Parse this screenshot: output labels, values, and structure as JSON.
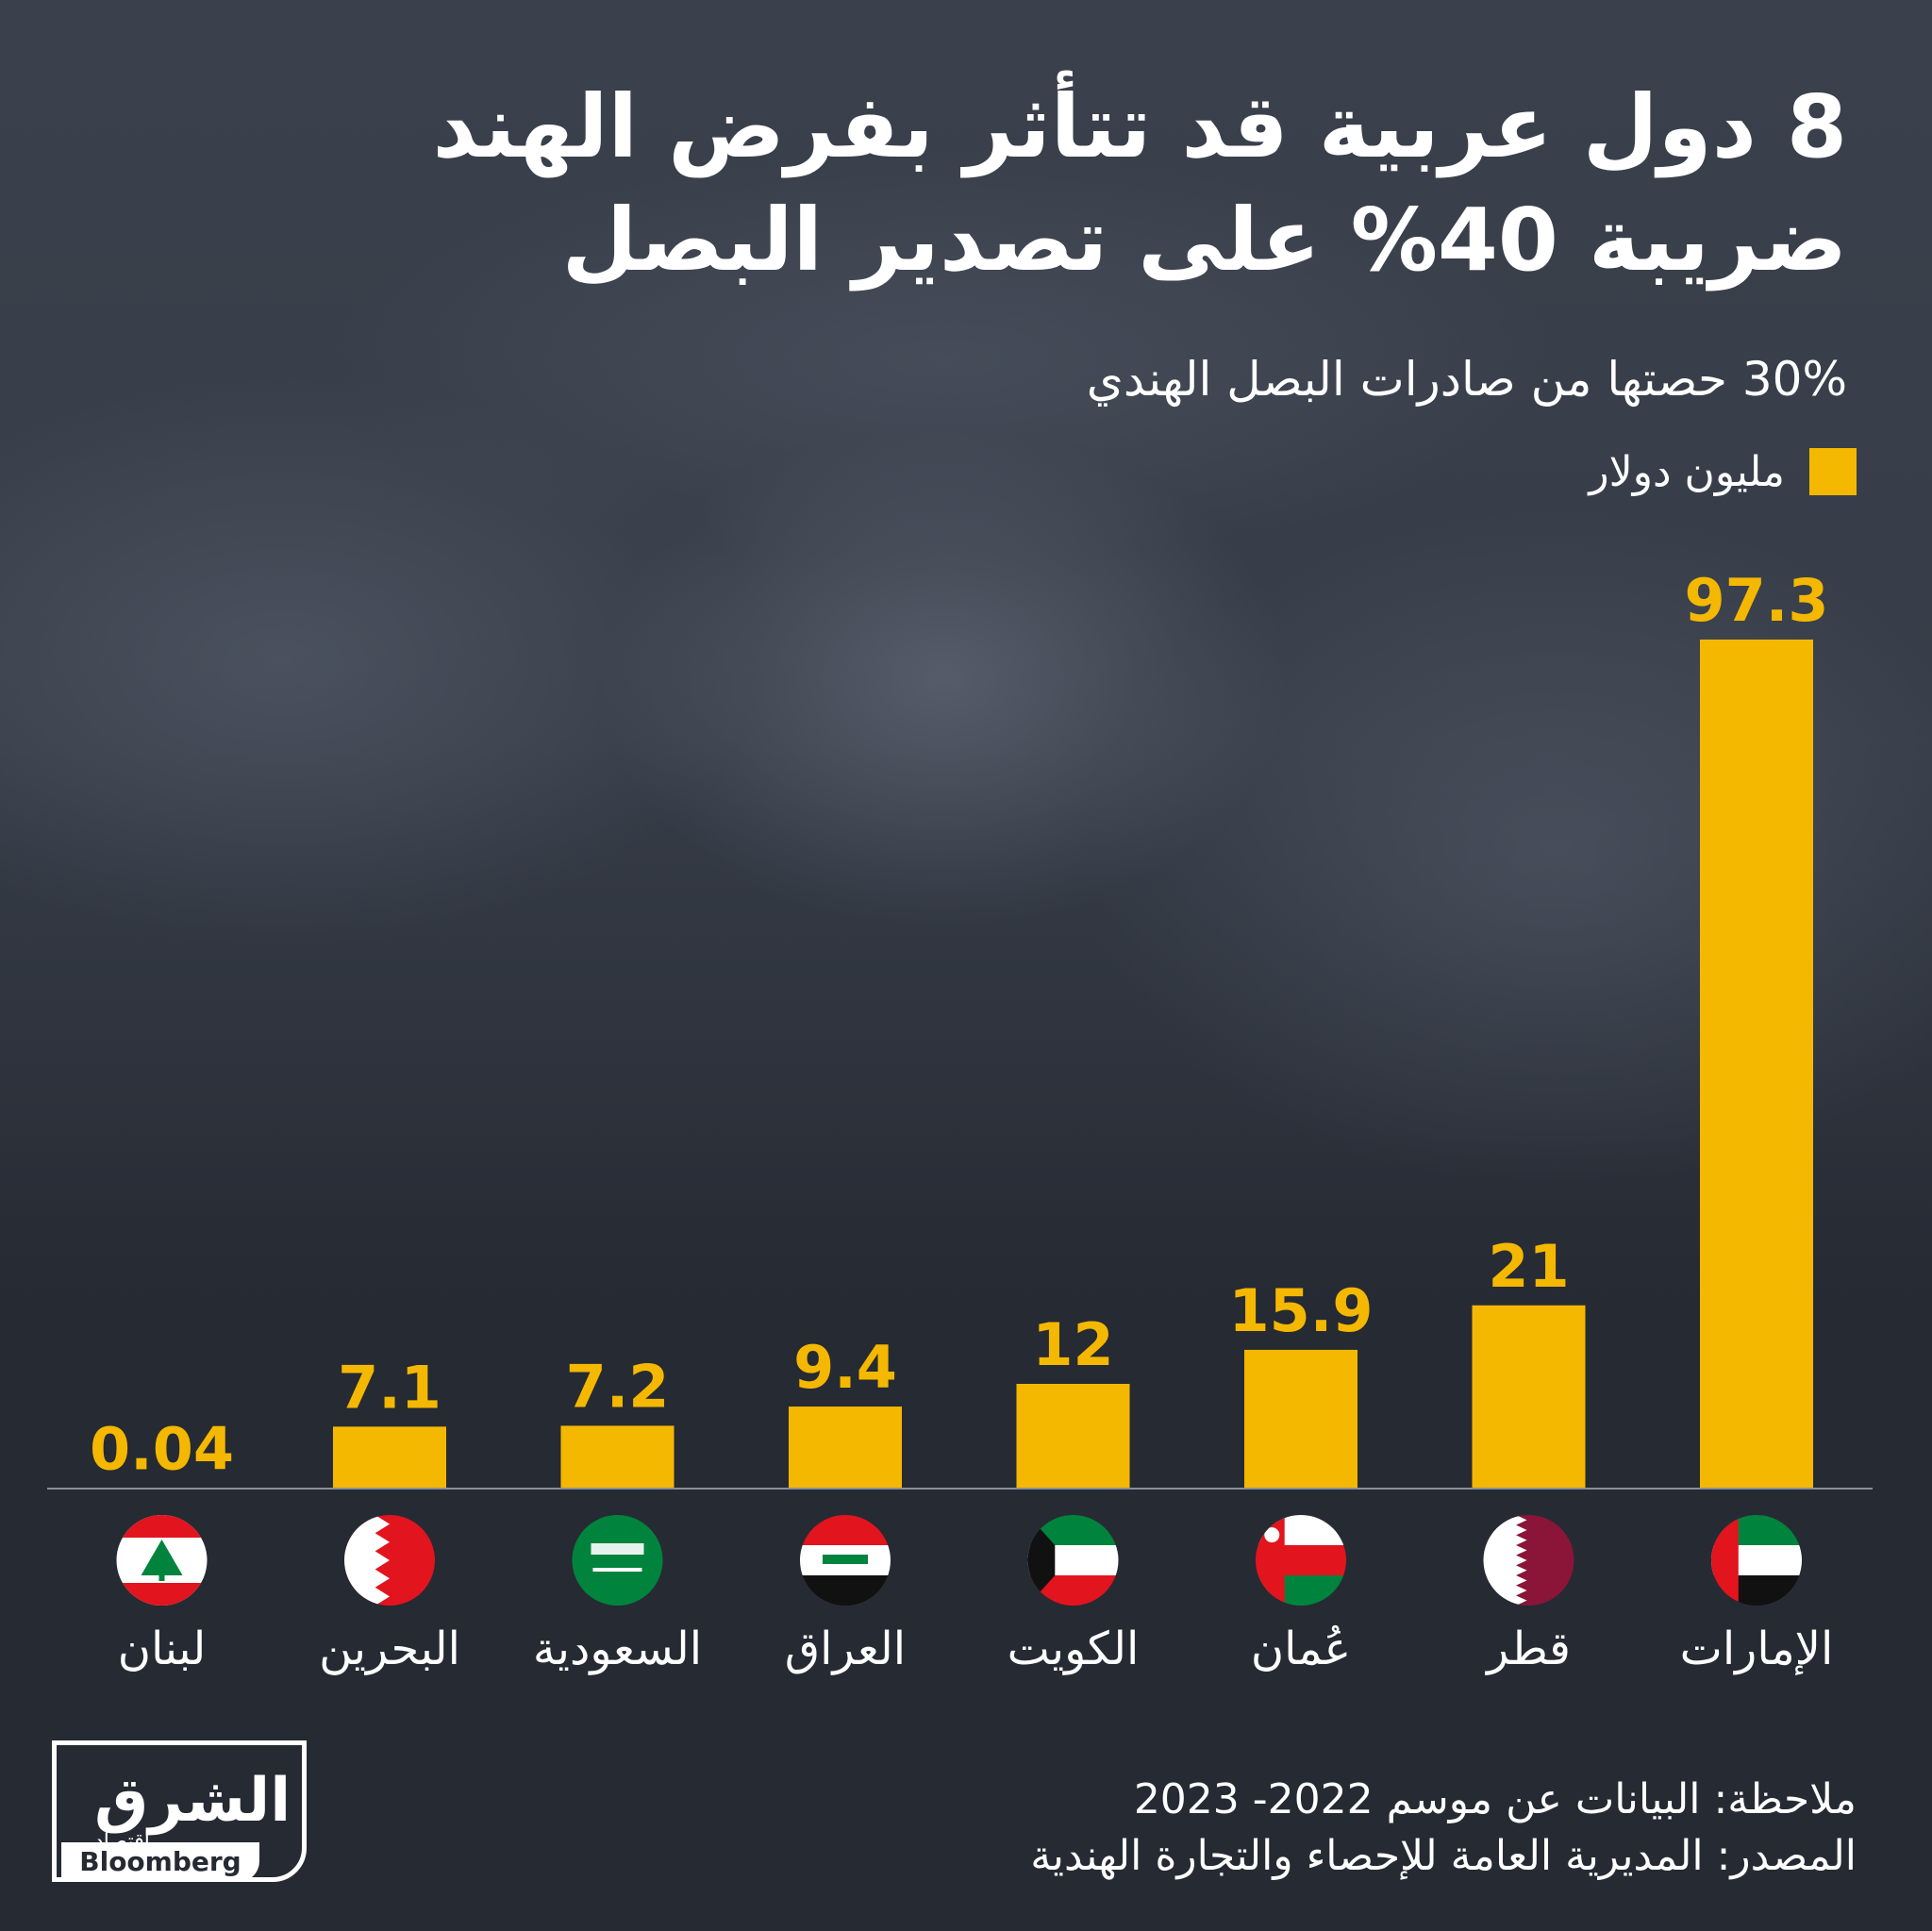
{
  "header": {
    "title_line1": "8 دول عربية قد تتأثر بفرض الهند",
    "title_line2": "ضريبة 40% على تصدير البصل",
    "subtitle": "30% حصتها من صادرات البصل الهندي"
  },
  "legend": {
    "label": "مليون دولار",
    "color": "#f5b800"
  },
  "chart_data": {
    "type": "bar",
    "categories": [
      "الإمارات",
      "قطر",
      "عُمان",
      "الكويت",
      "العراق",
      "السعودية",
      "البحرين",
      "لبنان"
    ],
    "values": [
      97.3,
      21,
      15.9,
      12,
      9.4,
      7.2,
      7.1,
      0.04
    ],
    "value_labels": [
      "97.3",
      "21",
      "15.9",
      "12",
      "9.4",
      "7.2",
      "7.1",
      "0.04"
    ],
    "unit": "مليون دولار",
    "bar_color": "#f5b800",
    "value_label_color": "#f5b800",
    "ylim": [
      0,
      100
    ],
    "grid": false
  },
  "flags": [
    {
      "country": "الإمارات",
      "icon": "uae-flag-icon"
    },
    {
      "country": "قطر",
      "icon": "qatar-flag-icon"
    },
    {
      "country": "عُمان",
      "icon": "oman-flag-icon"
    },
    {
      "country": "الكويت",
      "icon": "kuwait-flag-icon"
    },
    {
      "country": "العراق",
      "icon": "iraq-flag-icon"
    },
    {
      "country": "السعودية",
      "icon": "saudi-flag-icon"
    },
    {
      "country": "البحرين",
      "icon": "bahrain-flag-icon"
    },
    {
      "country": "لبنان",
      "icon": "lebanon-flag-icon"
    }
  ],
  "footer": {
    "note": "ملاحظة: البيانات عن موسم 2022- 2023",
    "source": "المصدر: المديرية العامة للإحصاء والتجارة الهندية",
    "logo_main": "الشرق",
    "logo_sub": "اقتصاد",
    "logo_partner": "Bloomberg"
  },
  "colors": {
    "background": "#262a33",
    "accent": "#f5b800",
    "text": "#ffffff"
  }
}
